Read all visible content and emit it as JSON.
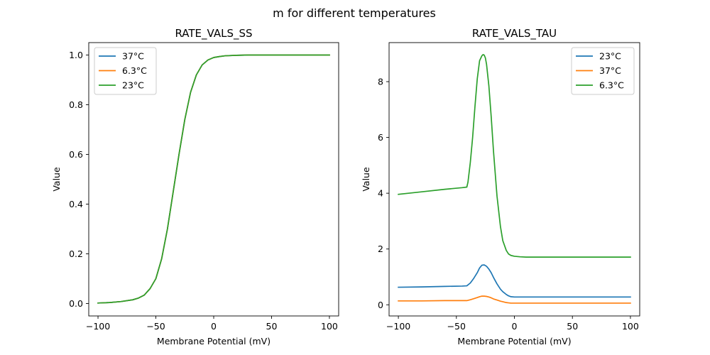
{
  "figure": {
    "suptitle": "m for different temperatures"
  },
  "chart_data": [
    {
      "type": "line",
      "title": "RATE_VALS_SS",
      "xlabel": "Membrane Potential (mV)",
      "ylabel": "Value",
      "xlim": [
        -108,
        108
      ],
      "ylim": [
        -0.05,
        1.05
      ],
      "xticks": [
        -100,
        -50,
        0,
        50,
        100
      ],
      "yticks": [
        0.0,
        0.2,
        0.4,
        0.6,
        0.8,
        1.0
      ],
      "ytick_labels": [
        "0.0",
        "0.2",
        "0.4",
        "0.6",
        "0.8",
        "1.0"
      ],
      "legend_position": "upper-left",
      "grid": false,
      "series": [
        {
          "name": "37°C",
          "color": "#1f77b4",
          "x": [
            -100,
            -90,
            -80,
            -70,
            -65,
            -60,
            -55,
            -50,
            -45,
            -40,
            -35,
            -30,
            -25,
            -20,
            -15,
            -10,
            -5,
            0,
            5,
            10,
            20,
            30,
            40,
            50,
            60,
            70,
            80,
            90,
            100
          ],
          "y": [
            0.002,
            0.004,
            0.008,
            0.015,
            0.022,
            0.034,
            0.06,
            0.1,
            0.18,
            0.3,
            0.45,
            0.6,
            0.74,
            0.85,
            0.92,
            0.96,
            0.98,
            0.99,
            0.994,
            0.997,
            0.999,
            1.0,
            1.0,
            1.0,
            1.0,
            1.0,
            1.0,
            1.0,
            1.0
          ]
        },
        {
          "name": "6.3°C",
          "color": "#ff7f0e",
          "x": [
            -100,
            -90,
            -80,
            -70,
            -65,
            -60,
            -55,
            -50,
            -45,
            -40,
            -35,
            -30,
            -25,
            -20,
            -15,
            -10,
            -5,
            0,
            5,
            10,
            20,
            30,
            40,
            50,
            60,
            70,
            80,
            90,
            100
          ],
          "y": [
            0.002,
            0.004,
            0.008,
            0.015,
            0.022,
            0.034,
            0.06,
            0.1,
            0.18,
            0.3,
            0.45,
            0.6,
            0.74,
            0.85,
            0.92,
            0.96,
            0.98,
            0.99,
            0.994,
            0.997,
            0.999,
            1.0,
            1.0,
            1.0,
            1.0,
            1.0,
            1.0,
            1.0,
            1.0
          ]
        },
        {
          "name": "23°C",
          "color": "#2ca02c",
          "x": [
            -100,
            -90,
            -80,
            -70,
            -65,
            -60,
            -55,
            -50,
            -45,
            -40,
            -35,
            -30,
            -25,
            -20,
            -15,
            -10,
            -5,
            0,
            5,
            10,
            20,
            30,
            40,
            50,
            60,
            70,
            80,
            90,
            100
          ],
          "y": [
            0.002,
            0.004,
            0.008,
            0.015,
            0.022,
            0.034,
            0.06,
            0.1,
            0.18,
            0.3,
            0.45,
            0.6,
            0.74,
            0.85,
            0.92,
            0.96,
            0.98,
            0.99,
            0.994,
            0.997,
            0.999,
            1.0,
            1.0,
            1.0,
            1.0,
            1.0,
            1.0,
            1.0,
            1.0
          ]
        }
      ]
    },
    {
      "type": "line",
      "title": "RATE_VALS_TAU",
      "xlabel": "Membrane Potential (mV)",
      "ylabel": "Value",
      "xlim": [
        -108,
        108
      ],
      "ylim": [
        -0.4,
        9.4
      ],
      "xticks": [
        -100,
        -50,
        0,
        50,
        100
      ],
      "yticks": [
        0,
        2,
        4,
        6,
        8
      ],
      "ytick_labels": [
        "0",
        "2",
        "4",
        "6",
        "8"
      ],
      "legend_position": "upper-right",
      "grid": false,
      "series": [
        {
          "name": "23°C",
          "color": "#1f77b4",
          "x": [
            -100,
            -80,
            -60,
            -45,
            -41,
            -38,
            -35,
            -32,
            -30,
            -28,
            -26,
            -24,
            -22,
            -20,
            -18,
            -15,
            -12,
            -10,
            -7,
            -5,
            -3,
            0,
            5,
            10,
            20,
            50,
            100
          ],
          "y": [
            0.63,
            0.64,
            0.66,
            0.67,
            0.68,
            0.78,
            0.95,
            1.15,
            1.32,
            1.42,
            1.43,
            1.38,
            1.28,
            1.15,
            0.98,
            0.75,
            0.56,
            0.47,
            0.37,
            0.32,
            0.29,
            0.28,
            0.28,
            0.28,
            0.28,
            0.28,
            0.28
          ]
        },
        {
          "name": "37°C",
          "color": "#ff7f0e",
          "x": [
            -100,
            -80,
            -60,
            -45,
            -41,
            -38,
            -35,
            -32,
            -30,
            -28,
            -26,
            -24,
            -22,
            -20,
            -18,
            -15,
            -12,
            -10,
            -7,
            -5,
            -3,
            0,
            5,
            10,
            20,
            50,
            100
          ],
          "y": [
            0.14,
            0.14,
            0.15,
            0.15,
            0.15,
            0.18,
            0.22,
            0.26,
            0.29,
            0.31,
            0.31,
            0.3,
            0.28,
            0.25,
            0.21,
            0.17,
            0.13,
            0.11,
            0.08,
            0.07,
            0.06,
            0.06,
            0.06,
            0.06,
            0.06,
            0.06,
            0.06
          ]
        },
        {
          "name": "6.3°C",
          "color": "#2ca02c",
          "x": [
            -100,
            -80,
            -60,
            -45,
            -41,
            -40,
            -38,
            -36,
            -34,
            -32,
            -30,
            -28,
            -27,
            -26,
            -25,
            -24,
            -22,
            -20,
            -18,
            -15,
            -12,
            -10,
            -7,
            -5,
            -3,
            0,
            5,
            10,
            20,
            50,
            100
          ],
          "y": [
            3.96,
            4.05,
            4.14,
            4.2,
            4.22,
            4.4,
            5.1,
            6.0,
            7.1,
            8.1,
            8.75,
            8.93,
            8.97,
            8.95,
            8.85,
            8.62,
            7.85,
            6.75,
            5.5,
            3.9,
            2.8,
            2.3,
            1.95,
            1.82,
            1.77,
            1.74,
            1.72,
            1.71,
            1.71,
            1.71,
            1.71
          ]
        }
      ]
    }
  ]
}
